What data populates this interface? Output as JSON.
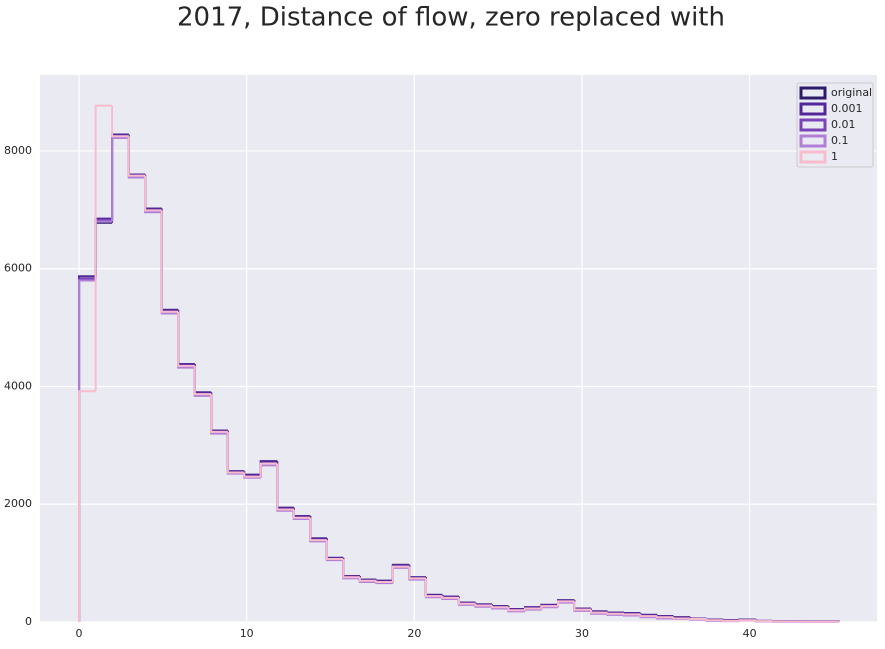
{
  "chart_data": {
    "type": "histogram",
    "title": "2017, Distance of flow, zero replaced with",
    "bins": [
      0,
      0.99,
      1.97,
      2.96,
      3.94,
      4.93,
      5.91,
      6.9,
      7.88,
      8.87,
      9.85,
      10.84,
      11.82,
      12.81,
      13.79,
      14.78,
      15.76,
      16.75,
      17.73,
      18.72,
      19.7,
      20.69,
      21.67,
      22.66,
      23.64,
      24.63,
      25.61,
      26.6,
      27.58,
      28.57,
      29.55,
      30.54,
      31.52,
      32.51,
      33.49,
      34.48,
      35.46,
      36.45,
      37.43,
      38.42,
      39.4,
      40.39,
      41.37,
      42.36,
      43.34,
      44.33,
      45.31
    ],
    "series": [
      {
        "name": "original",
        "color": "#2d1a6b",
        "values": [
          5870,
          6780,
          8280,
          7600,
          7020,
          5300,
          4380,
          3900,
          3250,
          2560,
          2500,
          2730,
          1940,
          1800,
          1420,
          1090,
          780,
          720,
          700,
          970,
          760,
          460,
          430,
          330,
          300,
          270,
          220,
          250,
          290,
          370,
          230,
          180,
          160,
          150,
          120,
          100,
          80,
          60,
          40,
          30,
          40,
          20,
          15,
          15,
          10,
          10
        ]
      },
      {
        "name": "0.001",
        "color": "#51279a",
        "values": [
          5870,
          6850,
          8280,
          7600,
          7020,
          5300,
          4380,
          3900,
          3250,
          2560,
          2500,
          2730,
          1940,
          1800,
          1420,
          1090,
          780,
          720,
          700,
          970,
          760,
          460,
          430,
          330,
          300,
          270,
          220,
          250,
          290,
          370,
          230,
          180,
          160,
          150,
          120,
          100,
          80,
          60,
          40,
          30,
          40,
          20,
          15,
          15,
          10,
          10
        ]
      },
      {
        "name": "0.01",
        "color": "#7a44b8",
        "values": [
          5830,
          6830,
          8250,
          7580,
          6990,
          5270,
          4350,
          3870,
          3230,
          2540,
          2470,
          2690,
          1910,
          1770,
          1390,
          1070,
          760,
          700,
          680,
          940,
          740,
          440,
          410,
          310,
          280,
          250,
          200,
          230,
          270,
          350,
          210,
          160,
          140,
          130,
          100,
          80,
          60,
          50,
          30,
          20,
          30,
          15,
          10,
          10,
          5,
          5
        ]
      },
      {
        "name": "0.1",
        "color": "#b07fd6",
        "values": [
          5800,
          6800,
          8220,
          7550,
          6960,
          5240,
          4320,
          3840,
          3200,
          2520,
          2450,
          2660,
          1890,
          1750,
          1370,
          1050,
          740,
          680,
          660,
          920,
          720,
          420,
          390,
          290,
          260,
          230,
          180,
          210,
          250,
          330,
          190,
          140,
          120,
          110,
          80,
          60,
          50,
          40,
          20,
          15,
          25,
          10,
          5,
          5,
          5,
          5
        ]
      },
      {
        "name": "1",
        "color": "#f9bccf",
        "values": [
          3920,
          8770,
          8250,
          7580,
          6990,
          5270,
          4350,
          3870,
          3230,
          2540,
          2470,
          2690,
          1910,
          1770,
          1390,
          1070,
          760,
          700,
          680,
          940,
          740,
          440,
          410,
          310,
          280,
          250,
          200,
          230,
          270,
          350,
          210,
          160,
          140,
          130,
          100,
          80,
          60,
          50,
          30,
          20,
          30,
          15,
          10,
          10,
          5,
          5
        ]
      }
    ],
    "xlim": [
      -2.33,
      47.6
    ],
    "ylim": [
      0,
      9290
    ],
    "xticks": [
      0,
      10,
      20,
      30,
      40
    ],
    "yticks": [
      0,
      2000,
      4000,
      6000,
      8000
    ],
    "grid": true,
    "legend": "upper right"
  }
}
